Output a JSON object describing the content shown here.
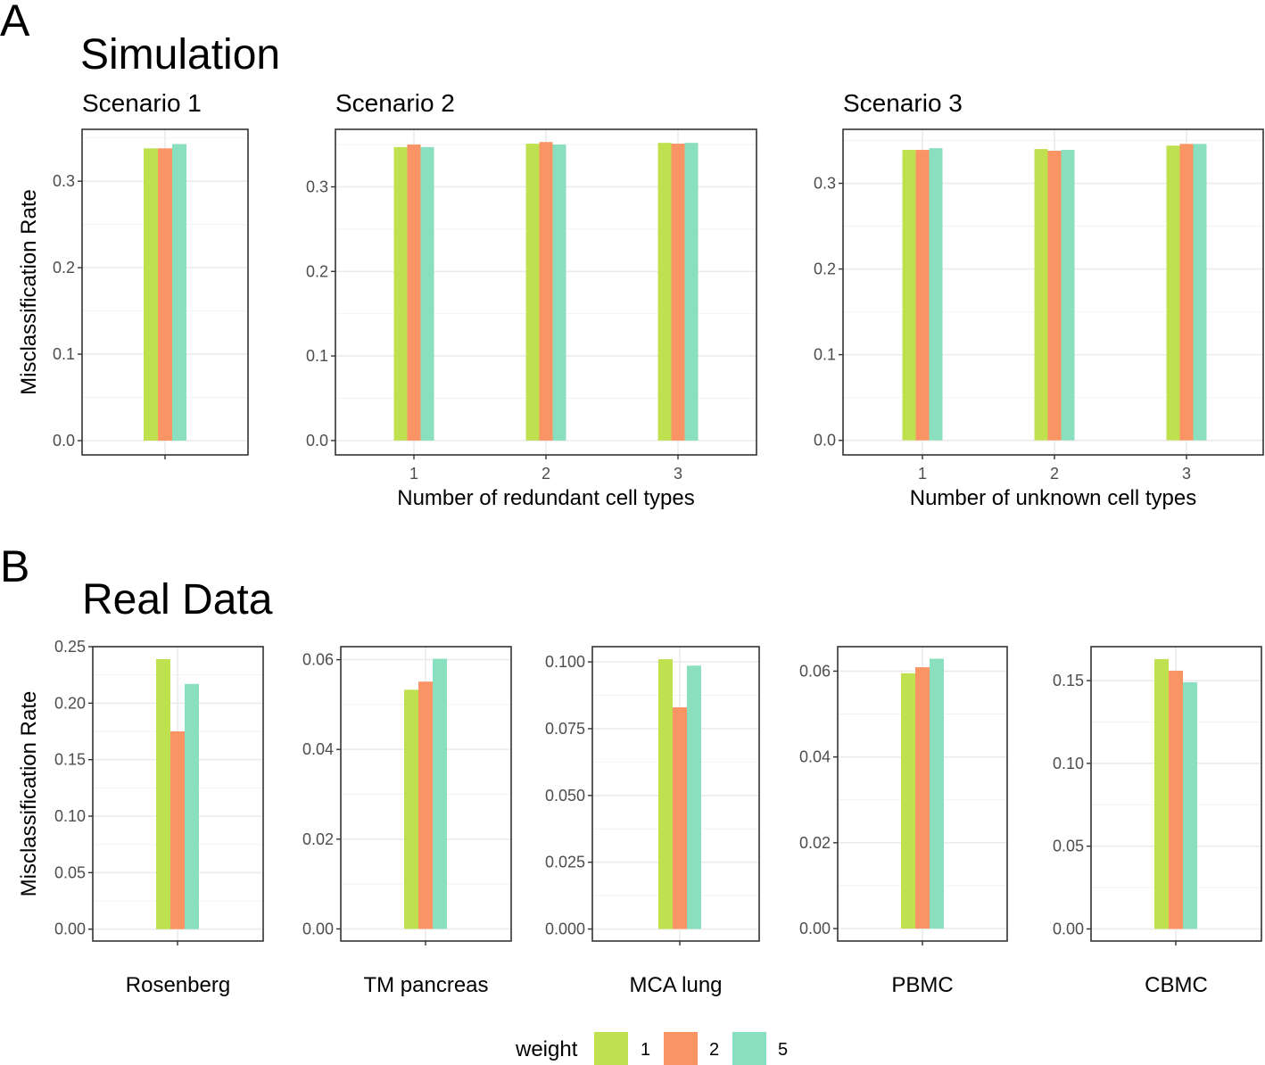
{
  "figure": {
    "panel_a_letter": "A",
    "panel_a_title": "Simulation",
    "panel_b_letter": "B",
    "panel_b_title": "Real Data"
  },
  "colors": {
    "weight_1": "#bfe04f",
    "weight_2": "#fa9464",
    "weight_5": "#8adfbe",
    "grid": "#ebebeb",
    "border": "#333333"
  },
  "legend": {
    "title": "weight",
    "items": [
      {
        "label": "1",
        "color_key": "weight_1"
      },
      {
        "label": "2",
        "color_key": "weight_2"
      },
      {
        "label": "5",
        "color_key": "weight_5"
      }
    ]
  },
  "chart_data": [
    {
      "type": "bar",
      "title": "Scenario 1",
      "ylabel": "Misclassification Rate",
      "xlabel": "",
      "categories": [
        ""
      ],
      "series": [
        {
          "name": "1",
          "values": [
            0.338
          ]
        },
        {
          "name": "2",
          "values": [
            0.338
          ]
        },
        {
          "name": "5",
          "values": [
            0.343
          ]
        }
      ],
      "yticks": [
        0.0,
        0.1,
        0.2,
        0.3
      ],
      "ytick_labels": [
        "0.0",
        "0.1",
        "0.2",
        "0.3"
      ],
      "ylim": [
        -0.0165,
        0.36
      ],
      "grid": true
    },
    {
      "type": "bar",
      "title": "Scenario 2",
      "ylabel": "",
      "xlabel": "Number of redundant cell types",
      "categories": [
        "1",
        "2",
        "3"
      ],
      "series": [
        {
          "name": "1",
          "values": [
            0.347,
            0.351,
            0.352
          ]
        },
        {
          "name": "2",
          "values": [
            0.35,
            0.353,
            0.351
          ]
        },
        {
          "name": "5",
          "values": [
            0.347,
            0.35,
            0.352
          ]
        }
      ],
      "yticks": [
        0.0,
        0.1,
        0.2,
        0.3
      ],
      "ytick_labels": [
        "0.0",
        "0.1",
        "0.2",
        "0.3"
      ],
      "ylim": [
        -0.017,
        0.368
      ],
      "grid": true
    },
    {
      "type": "bar",
      "title": "Scenario 3",
      "ylabel": "",
      "xlabel": "Number of unknown cell types",
      "categories": [
        "1",
        "2",
        "3"
      ],
      "series": [
        {
          "name": "1",
          "values": [
            0.339,
            0.34,
            0.344
          ]
        },
        {
          "name": "2",
          "values": [
            0.339,
            0.338,
            0.346
          ]
        },
        {
          "name": "5",
          "values": [
            0.341,
            0.339,
            0.346
          ]
        }
      ],
      "yticks": [
        0.0,
        0.1,
        0.2,
        0.3
      ],
      "ytick_labels": [
        "0.0",
        "0.1",
        "0.2",
        "0.3"
      ],
      "ylim": [
        -0.017,
        0.363
      ],
      "grid": true
    },
    {
      "type": "bar",
      "title": "",
      "ylabel": "Misclassification Rate",
      "xlabel": "Rosenberg",
      "categories": [
        ""
      ],
      "series": [
        {
          "name": "1",
          "values": [
            0.239
          ]
        },
        {
          "name": "2",
          "values": [
            0.175
          ]
        },
        {
          "name": "5",
          "values": [
            0.217
          ]
        }
      ],
      "yticks": [
        0.0,
        0.05,
        0.1,
        0.15,
        0.2,
        0.25
      ],
      "ytick_labels": [
        "0.00",
        "0.05",
        "0.10",
        "0.15",
        "0.20",
        "0.25"
      ],
      "ylim": [
        -0.0105,
        0.25
      ],
      "grid": true
    },
    {
      "type": "bar",
      "title": "",
      "ylabel": "",
      "xlabel": "TM pancreas",
      "categories": [
        ""
      ],
      "series": [
        {
          "name": "1",
          "values": [
            0.0533
          ]
        },
        {
          "name": "2",
          "values": [
            0.0551
          ]
        },
        {
          "name": "5",
          "values": [
            0.0602
          ]
        }
      ],
      "yticks": [
        0.0,
        0.02,
        0.04,
        0.06
      ],
      "ytick_labels": [
        "0.00",
        "0.02",
        "0.04",
        "0.06"
      ],
      "ylim": [
        -0.0027,
        0.0629
      ],
      "grid": true
    },
    {
      "type": "bar",
      "title": "",
      "ylabel": "",
      "xlabel": "MCA lung",
      "categories": [
        ""
      ],
      "series": [
        {
          "name": "1",
          "values": [
            0.101
          ]
        },
        {
          "name": "2",
          "values": [
            0.083
          ]
        },
        {
          "name": "5",
          "values": [
            0.0986
          ]
        }
      ],
      "yticks": [
        0.0,
        0.025,
        0.05,
        0.075,
        0.1
      ],
      "ytick_labels": [
        "0.000",
        "0.025",
        "0.050",
        "0.075",
        "0.100"
      ],
      "ylim": [
        -0.0045,
        0.1057
      ],
      "grid": true
    },
    {
      "type": "bar",
      "title": "",
      "ylabel": "",
      "xlabel": "PBMC",
      "categories": [
        ""
      ],
      "series": [
        {
          "name": "1",
          "values": [
            0.0595
          ]
        },
        {
          "name": "2",
          "values": [
            0.0609
          ]
        },
        {
          "name": "5",
          "values": [
            0.0629
          ]
        }
      ],
      "yticks": [
        0.0,
        0.02,
        0.04,
        0.06
      ],
      "ytick_labels": [
        "0.00",
        "0.02",
        "0.04",
        "0.06"
      ],
      "ylim": [
        -0.0029,
        0.0657
      ],
      "grid": true
    },
    {
      "type": "bar",
      "title": "",
      "ylabel": "",
      "xlabel": "CBMC",
      "categories": [
        ""
      ],
      "series": [
        {
          "name": "1",
          "values": [
            0.163
          ]
        },
        {
          "name": "2",
          "values": [
            0.156
          ]
        },
        {
          "name": "5",
          "values": [
            0.149
          ]
        }
      ],
      "yticks": [
        0.0,
        0.05,
        0.1,
        0.15
      ],
      "ytick_labels": [
        "0.00",
        "0.05",
        "0.10",
        "0.15"
      ],
      "ylim": [
        -0.0073,
        0.1705
      ],
      "grid": true
    }
  ]
}
